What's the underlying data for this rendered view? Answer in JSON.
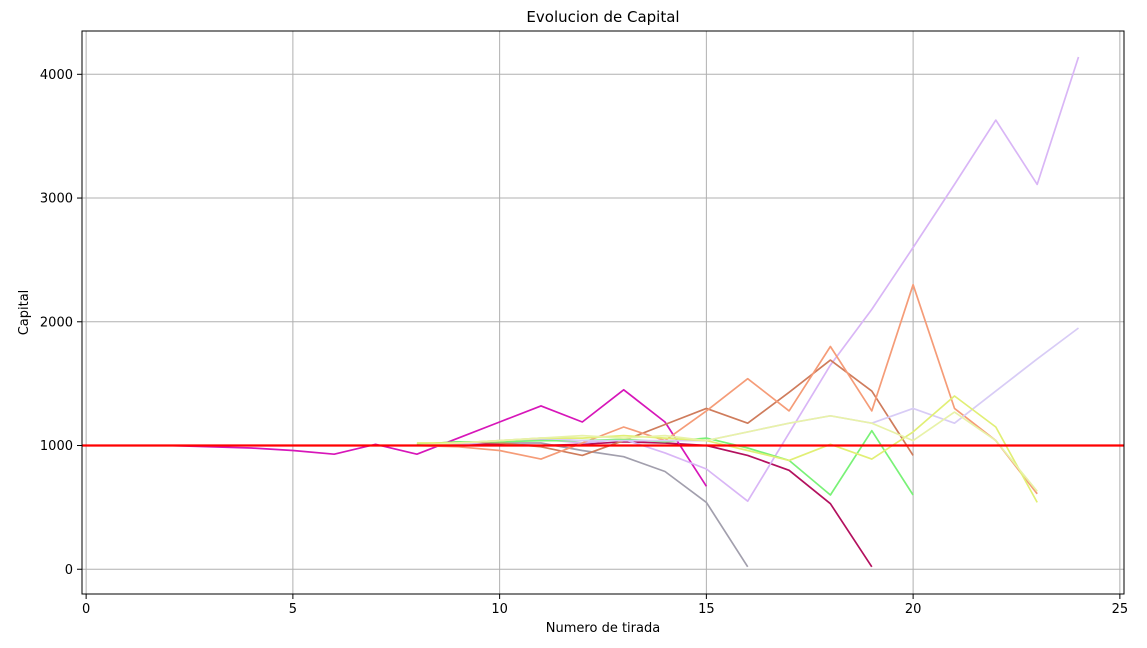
{
  "chart_data": {
    "type": "line",
    "title": "Evolucion de Capital",
    "xlabel": "Numero de tirada",
    "ylabel": "Capital",
    "xlim": [
      -0.1,
      25.1
    ],
    "ylim": [
      -200,
      4350
    ],
    "xticks": [
      0,
      5,
      10,
      15,
      20,
      25
    ],
    "yticks": [
      0,
      1000,
      2000,
      3000,
      4000
    ],
    "grid": true,
    "reference_line": {
      "y": 1000,
      "color": "#ff0000"
    },
    "series": [
      {
        "color": "#a29fad",
        "x": [
          8,
          9,
          10,
          11,
          12,
          13,
          14,
          15,
          16
        ],
        "y": [
          1000,
          1020,
          1020,
          1020,
          960,
          910,
          790,
          540,
          20
        ]
      },
      {
        "color": "#b3105e",
        "x": [
          8,
          9,
          10,
          11,
          12,
          13,
          14,
          15,
          16,
          17,
          18,
          19
        ],
        "y": [
          1000,
          1010,
          1010,
          1000,
          1010,
          1030,
          1020,
          1000,
          920,
          800,
          530,
          20
        ]
      },
      {
        "color": "#d716b9",
        "x": [
          1,
          2,
          3,
          4,
          5,
          6,
          7,
          8,
          9,
          10,
          11,
          12,
          13,
          14,
          15
        ],
        "y": [
          1000,
          1000,
          990,
          980,
          960,
          930,
          1010,
          930,
          1060,
          1190,
          1320,
          1190,
          1450,
          1190,
          670
        ]
      },
      {
        "color": "#d9b6f6",
        "x": [
          8,
          9,
          10,
          11,
          12,
          13,
          14,
          15,
          16,
          17,
          18,
          19,
          20,
          21,
          22,
          23,
          24
        ],
        "y": [
          1000,
          1010,
          1030,
          1050,
          1020,
          1050,
          940,
          810,
          550,
          1100,
          1650,
          2100,
          2600,
          3110,
          3630,
          3110,
          4140
        ]
      },
      {
        "color": "#cf7c5c",
        "x": [
          8,
          9,
          10,
          11,
          12,
          13,
          14,
          15,
          16,
          17,
          18,
          19,
          20
        ],
        "y": [
          1010,
          1030,
          1020,
          990,
          920,
          1040,
          1170,
          1300,
          1180,
          1430,
          1690,
          1440,
          920
        ]
      },
      {
        "color": "#f59c78",
        "x": [
          8,
          9,
          10,
          11,
          12,
          13,
          14,
          15,
          16,
          17,
          18,
          19,
          20,
          21,
          22,
          23
        ],
        "y": [
          1000,
          990,
          960,
          890,
          1020,
          1150,
          1040,
          1280,
          1540,
          1280,
          1800,
          1280,
          2300,
          1300,
          1040,
          610
        ]
      },
      {
        "color": "#79f277",
        "x": [
          8,
          9,
          10,
          11,
          12,
          13,
          14,
          15,
          16,
          17,
          18,
          19,
          20
        ],
        "y": [
          1010,
          1030,
          1030,
          1040,
          1040,
          1050,
          1030,
          1060,
          980,
          880,
          600,
          1120,
          600
        ]
      },
      {
        "color": "#d8ccf6",
        "x": [
          8,
          9,
          10,
          11,
          12,
          13,
          14,
          15,
          16,
          17,
          18,
          19,
          20,
          21,
          22,
          23,
          24
        ],
        "y": [
          1000,
          1020,
          1040,
          1060,
          1040,
          1040,
          1040,
          1040,
          1110,
          1180,
          1240,
          1180,
          1300,
          1180,
          1440,
          1700,
          1950
        ]
      },
      {
        "color": "#e1ef75",
        "x": [
          8,
          9,
          10,
          11,
          12,
          13,
          14,
          15,
          16,
          17,
          18,
          19,
          20,
          21,
          22,
          23
        ],
        "y": [
          1020,
          1020,
          1040,
          1060,
          1060,
          1080,
          1060,
          1040,
          960,
          880,
          1010,
          890,
          1110,
          1400,
          1150,
          540
        ]
      },
      {
        "color": "#e8f2a8",
        "x": [
          8,
          9,
          10,
          11,
          12,
          13,
          14,
          15,
          16,
          17,
          18,
          19,
          20,
          21,
          22,
          23
        ],
        "y": [
          1000,
          1020,
          1040,
          1060,
          1080,
          1060,
          1080,
          1040,
          1110,
          1180,
          1240,
          1180,
          1040,
          1270,
          1040,
          630
        ]
      }
    ]
  }
}
